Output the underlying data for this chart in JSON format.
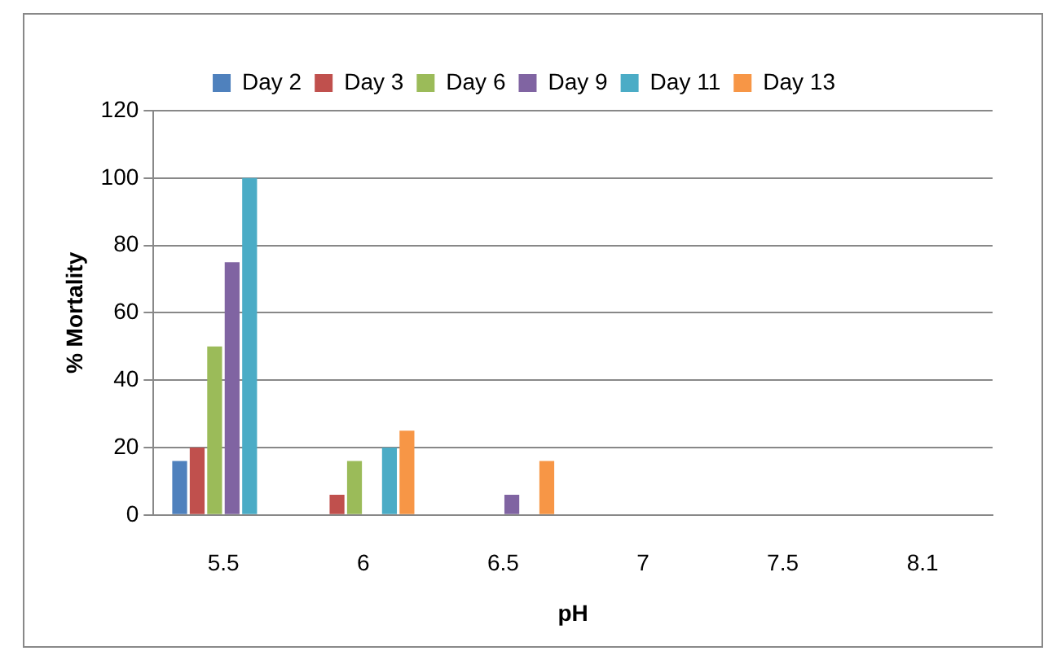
{
  "chart_data": {
    "type": "bar",
    "xlabel": "pH",
    "ylabel": "% Mortality",
    "categories": [
      "5.5",
      "6",
      "6.5",
      "7",
      "7.5",
      "8.1"
    ],
    "series": [
      {
        "name": "Day 2",
        "color": "#4f81bd",
        "values": [
          16,
          0,
          0,
          0,
          0,
          0
        ]
      },
      {
        "name": "Day 3",
        "color": "#c0504d",
        "values": [
          20,
          6,
          0,
          0,
          0,
          0
        ]
      },
      {
        "name": "Day 6",
        "color": "#9bbb59",
        "values": [
          50,
          16,
          0,
          0,
          0,
          0
        ]
      },
      {
        "name": "Day 9",
        "color": "#8064a2",
        "values": [
          75,
          0,
          6,
          0,
          0,
          0
        ]
      },
      {
        "name": "Day 11",
        "color": "#4bacc6",
        "values": [
          100,
          20,
          0,
          0,
          0,
          0
        ]
      },
      {
        "name": "Day 13",
        "color": "#f79646",
        "values": [
          0,
          25,
          16,
          0,
          0,
          0
        ]
      }
    ],
    "ylim": [
      0,
      120
    ],
    "yticks": [
      0,
      20,
      40,
      60,
      80,
      100,
      120
    ],
    "grid": "y",
    "legend": "top"
  }
}
